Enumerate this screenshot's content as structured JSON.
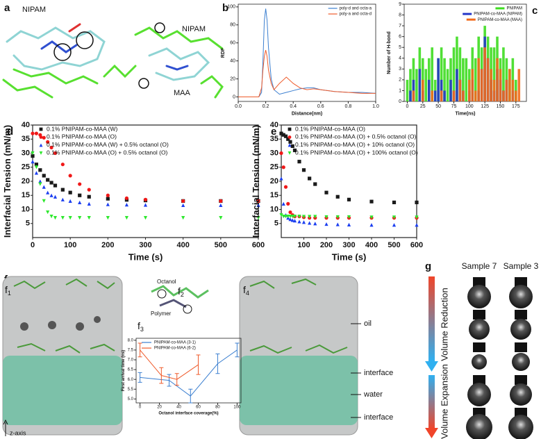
{
  "chart_data": [
    {
      "type": "line",
      "xlabel": "Distance(nm)",
      "ylabel": "RDF",
      "x": [
        0,
        0.1,
        0.15,
        0.17,
        0.18,
        0.19,
        0.2,
        0.21,
        0.22,
        0.24,
        0.26,
        0.3,
        0.35,
        0.4,
        0.45,
        0.5,
        0.55,
        0.6,
        0.7,
        0.8,
        0.9,
        1.0
      ],
      "series": [
        {
          "name": "poly-d and octa-a",
          "color": "#3b7fd0",
          "values": [
            0,
            0,
            0,
            5,
            40,
            85,
            98,
            85,
            55,
            20,
            8,
            3,
            5,
            7,
            9,
            10,
            10,
            8,
            6,
            5,
            5,
            4
          ]
        },
        {
          "name": "poly-a and octa-d",
          "color": "#ef5a2a",
          "values": [
            0,
            0,
            0,
            10,
            30,
            45,
            52,
            45,
            30,
            15,
            8,
            15,
            22,
            15,
            10,
            8,
            9,
            8,
            6,
            5,
            4,
            4
          ]
        }
      ],
      "xlim": [
        0,
        1
      ],
      "xticks": [
        {
          "value": 0,
          "label": "0.0"
        },
        {
          "value": 0.2,
          "label": "0.2"
        },
        {
          "value": 0.4,
          "label": "0.4"
        },
        {
          "value": 0.6,
          "label": "0.6"
        },
        {
          "value": 0.8,
          "label": "0.8"
        },
        {
          "value": 1,
          "label": "1.0"
        }
      ],
      "ylim": [
        -5,
        103
      ],
      "yticks": [
        0,
        20,
        40,
        60,
        80,
        100
      ],
      "legend": "upper right"
    },
    {
      "type": "bar",
      "xlabel": "Time(ns)",
      "ylabel": "Number of H-bond",
      "x": [
        0,
        5,
        10,
        15,
        20,
        25,
        30,
        35,
        40,
        45,
        50,
        55,
        60,
        65,
        70,
        75,
        80,
        85,
        90,
        95,
        100,
        105,
        110,
        115,
        120,
        125,
        130,
        135,
        140,
        145,
        150,
        155,
        160,
        165,
        170,
        175,
        180,
        185
      ],
      "series": [
        {
          "name": "PNIPAM",
          "color": "#3ddc1f",
          "values": [
            2,
            3,
            4,
            3,
            5,
            4,
            3,
            4,
            5,
            2,
            4,
            5,
            4,
            3,
            4,
            5,
            6,
            5,
            4,
            4,
            3,
            5,
            4,
            6,
            5,
            7,
            6,
            5,
            5,
            6,
            4,
            5,
            4,
            3,
            4,
            2,
            0,
            0
          ]
        },
        {
          "name": "PNIPAM-co-MAA (NIPAM)",
          "color": "#2436c8",
          "values": [
            0,
            1,
            2,
            0,
            3,
            1,
            0,
            2,
            0,
            1,
            4,
            2,
            1,
            0,
            2,
            1,
            3,
            2,
            1,
            0,
            1,
            2,
            0,
            1,
            3,
            6,
            4,
            2,
            1,
            3,
            2,
            1,
            2,
            0,
            1,
            0,
            0,
            0
          ]
        },
        {
          "name": "PNIPAM-co-MAA (MAA)",
          "color": "#f26a1b",
          "values": [
            0,
            0,
            1,
            0,
            0,
            2,
            0,
            0,
            1,
            0,
            0,
            1,
            0,
            0,
            0,
            1,
            0,
            2,
            1,
            0,
            2,
            3,
            1,
            4,
            3,
            5,
            4,
            3,
            2,
            4,
            3,
            1,
            2,
            3,
            2,
            1,
            3,
            0
          ]
        }
      ],
      "xlim": [
        -5,
        192
      ],
      "xticks": [
        0,
        25,
        50,
        75,
        100,
        125,
        150,
        175
      ],
      "ylim": [
        0,
        9
      ],
      "yticks": [
        0,
        1,
        2,
        3,
        4,
        5,
        6,
        7,
        8,
        9
      ],
      "legend": "upper right"
    },
    {
      "type": "scatter",
      "xlabel": "Time (s)",
      "ylabel": "Interfacial Tension (mN/m)",
      "x": [
        0,
        10,
        20,
        30,
        40,
        50,
        60,
        80,
        100,
        125,
        150,
        200,
        250,
        300,
        400,
        500,
        600
      ],
      "series": [
        {
          "name": "0.1% PNIPAM-co-MAA (W)",
          "color": "#1a1a1a",
          "marker": "square",
          "values": [
            29,
            26,
            24,
            22,
            20.5,
            19.5,
            18.5,
            17,
            16,
            15,
            14.5,
            13.8,
            13.4,
            13.2,
            13,
            13,
            13
          ]
        },
        {
          "name": "0.1% PNIPAM-co-MAA (O)",
          "color": "#f01818",
          "marker": "circle",
          "values": [
            37,
            37,
            36.5,
            35.5,
            34,
            32,
            30,
            26,
            22,
            19,
            17,
            15,
            14,
            13.5,
            13,
            13,
            13
          ]
        },
        {
          "name": "0.1% PNIPAM-co-MAA (W) + 0.5% octanol (O)",
          "color": "#1c3ff0",
          "marker": "triangle",
          "values": [
            27,
            23,
            20,
            18,
            16,
            15,
            14.5,
            13.5,
            13,
            12.5,
            12,
            11.8,
            11.7,
            11.6,
            11.5,
            11.5,
            11.5
          ]
        },
        {
          "name": "0.1% PNIPAM-co-MAA (O) + 0.5% octanol (O)",
          "color": "#2ee82e",
          "marker": "triangle-down",
          "values": [
            30,
            25,
            19,
            13,
            9,
            7.5,
            7,
            7,
            7,
            7,
            7,
            7,
            7,
            7,
            7,
            7,
            7
          ]
        }
      ],
      "xlim": [
        0,
        600
      ],
      "xticks": [
        0,
        100,
        200,
        300,
        400,
        500,
        600
      ],
      "ylim": [
        0,
        40
      ],
      "yticks": [
        5,
        10,
        15,
        20,
        25,
        30,
        35,
        40
      ],
      "legend": "upper left"
    },
    {
      "type": "scatter",
      "xlabel": "Time (s)",
      "ylabel": "Interfacial Tension (mN/m)",
      "x": [
        0,
        10,
        20,
        30,
        40,
        50,
        60,
        80,
        100,
        125,
        150,
        200,
        250,
        300,
        400,
        500,
        600
      ],
      "series": [
        {
          "name": "0.1% PNIPAM-co-MAA (O)",
          "color": "#1a1a1a",
          "marker": "square",
          "values": [
            37,
            36.5,
            36,
            35,
            34,
            32.5,
            31,
            27,
            24,
            21,
            19,
            16,
            14.5,
            13.5,
            12.8,
            12.5,
            12.5
          ]
        },
        {
          "name": "0.1% PNIPAM-co-MAA (O) + 0.5% octanol (O)",
          "color": "#f01818",
          "marker": "circle",
          "values": [
            30,
            25,
            18,
            12,
            9,
            8,
            7.5,
            7.5,
            7.2,
            7,
            7,
            7,
            7,
            7,
            7,
            7,
            7
          ]
        },
        {
          "name": "0.1% PNIPAM-co-MAA (O) + 10% octanol (O)",
          "color": "#1c3ff0",
          "marker": "triangle",
          "values": [
            21,
            12,
            8,
            7,
            6.5,
            6.2,
            6,
            5.7,
            5.5,
            5.2,
            5,
            4.8,
            4.7,
            4.6,
            4.5,
            4.5,
            4.5
          ]
        },
        {
          "name": "0.1% PNIPAM-co-MAA (O) + 100% octanol (O)",
          "color": "#2ee82e",
          "marker": "triangle-down",
          "values": [
            8,
            7.5,
            7.5,
            7.5,
            7.5,
            7.5,
            7.5,
            7.5,
            7.4,
            7.4,
            7.4,
            7.3,
            7.3,
            7.3,
            7.2,
            7.2,
            7.2
          ]
        }
      ],
      "xlim": [
        0,
        600
      ],
      "xticks": [
        100,
        200,
        300,
        400,
        500,
        600
      ],
      "ylim": [
        0,
        40
      ],
      "yticks": [
        5,
        10,
        15,
        20,
        25,
        30,
        35,
        40
      ],
      "legend": "upper left"
    },
    {
      "type": "errorbar",
      "xlabel": "Octanol interface coverage(%)",
      "ylabel": "First arrival time (ns)",
      "series": [
        {
          "name": "PNIPAM-co-MAA (3-1)",
          "color": "#3b7fd0",
          "x": [
            0,
            30,
            52,
            80,
            100
          ],
          "values": [
            6.1,
            5.95,
            5.15,
            6.8,
            7.5
          ],
          "errors": [
            0.25,
            0.3,
            0.35,
            0.5,
            0.35
          ]
        },
        {
          "name": "PNIPAM-co-MAA (6-2)",
          "color": "#ef5a2a",
          "x": [
            0,
            22,
            38,
            60
          ],
          "values": [
            7.5,
            6.2,
            6.0,
            6.75
          ],
          "errors": [
            0.35,
            0.4,
            0.3,
            0.5
          ]
        }
      ],
      "xlim": [
        -4,
        104
      ],
      "xticks": [
        0,
        20,
        40,
        60,
        80,
        100
      ],
      "ylim": [
        4.8,
        8.1
      ],
      "yticks": [
        {
          "value": 5,
          "label": "5.0"
        },
        {
          "value": 5.5,
          "label": "5.5"
        },
        {
          "value": 6,
          "label": "6.0"
        },
        {
          "value": 6.5,
          "label": "6.5"
        },
        {
          "value": 7,
          "label": "7.0"
        },
        {
          "value": 7.5,
          "label": "7.5"
        },
        {
          "value": 8,
          "label": "8.0"
        }
      ],
      "legend": "upper left"
    }
  ],
  "figure": {
    "panels": {
      "a": "a",
      "b": "b",
      "c": "c",
      "d": "d",
      "e": "e",
      "f": "f",
      "g": "g"
    },
    "subpanels": [
      {
        "letter": "f",
        "index": "1"
      },
      {
        "letter": "f",
        "index": "2"
      },
      {
        "letter": "f",
        "index": "3"
      },
      {
        "letter": "f",
        "index": "4"
      }
    ],
    "molecule_labels": [
      "NIPAM",
      "NIPAM",
      "MAA"
    ],
    "f2_labels": [
      "Octanol",
      "Polymer"
    ],
    "layer_labels": [
      "oil",
      "interface",
      "water",
      "interface"
    ],
    "axis_note": "z-axis",
    "samples": [
      "Sample 7",
      "Sample 3"
    ],
    "stages": [
      "Volume Reduction",
      "Volume Expansion"
    ]
  }
}
